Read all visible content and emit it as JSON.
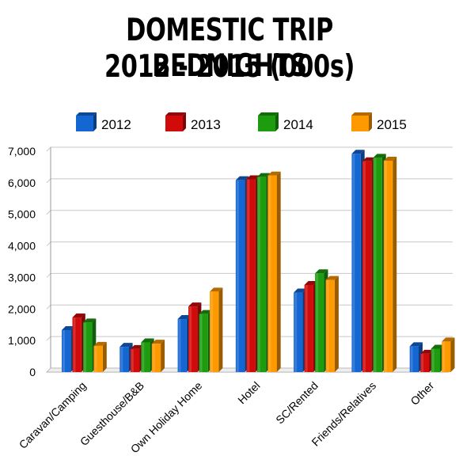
{
  "chart_data": {
    "type": "bar",
    "title": "DOMESTIC TRIP BEDNIGHTS",
    "subtitle": "2012 - 2015 (000s)",
    "categories": [
      "Caravan/Camping",
      "Guesthouse/B&B",
      "Own Holiday Home",
      "Hotel",
      "SC/Rented",
      "Friends/Relatives",
      "Other"
    ],
    "series": [
      {
        "name": "2012",
        "color": "#1466d2",
        "values": [
          1330,
          800,
          1680,
          6080,
          2520,
          6920,
          820
        ]
      },
      {
        "name": "2013",
        "color": "#d10a0a",
        "values": [
          1730,
          730,
          2080,
          6110,
          2760,
          6680,
          580
        ]
      },
      {
        "name": "2014",
        "color": "#1d9c10",
        "values": [
          1570,
          940,
          1840,
          6180,
          3130,
          6790,
          740
        ]
      },
      {
        "name": "2015",
        "color": "#ff9900",
        "values": [
          830,
          900,
          2550,
          6230,
          2920,
          6700,
          970
        ]
      }
    ],
    "yticks": [
      "0",
      "1,000",
      "2,000",
      "3,000",
      "4,000",
      "5,000",
      "6,000",
      "7,000"
    ],
    "ylim": [
      0,
      7000
    ],
    "grid": true,
    "legend_position": "top"
  }
}
